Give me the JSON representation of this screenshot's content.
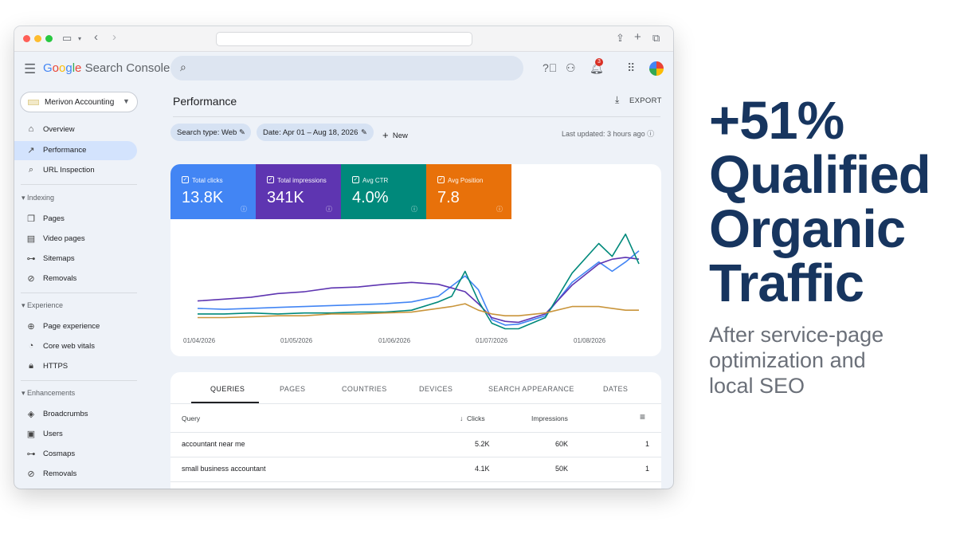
{
  "app": {
    "product_name": "Google Search Console",
    "property": "Merivon Accounting",
    "notification_count": "3"
  },
  "sidebar": {
    "top_items": [
      {
        "label": "Overview",
        "icon": "home-icon",
        "active": false
      },
      {
        "label": "Performance",
        "icon": "trending-up-icon",
        "active": true
      },
      {
        "label": "URL Inspection",
        "icon": "search-icon",
        "active": false
      }
    ],
    "sections": [
      {
        "title": "Indexing",
        "items": [
          {
            "label": "Pages",
            "icon": "pages-icon"
          },
          {
            "label": "Video pages",
            "icon": "video-pages-icon"
          },
          {
            "label": "Sitemaps",
            "icon": "sitemap-icon"
          },
          {
            "label": "Removals",
            "icon": "removals-icon"
          }
        ]
      },
      {
        "title": "Experience",
        "items": [
          {
            "label": "Page experience",
            "icon": "page-experience-icon"
          },
          {
            "label": "Core web vitals",
            "icon": "gauge-icon"
          },
          {
            "label": "HTTPS",
            "icon": "lock-icon"
          }
        ]
      },
      {
        "title": "Enhancements",
        "items": [
          {
            "label": "Broadcrumbs",
            "icon": "layers-icon"
          },
          {
            "label": "Users",
            "icon": "users-icon"
          },
          {
            "label": "Cosmaps",
            "icon": "sitemap-icon"
          },
          {
            "label": "Removals",
            "icon": "removals-icon"
          }
        ]
      }
    ]
  },
  "main": {
    "title": "Performance",
    "export_label": "EXPORT",
    "filters": {
      "search_type": "Search type: Web",
      "date": "Date: Apr 01 – Aug 18, 2026",
      "new_label": "New"
    },
    "last_updated": "Last updated: 3 hours ago"
  },
  "metrics": [
    {
      "label": "Total clicks",
      "value": "13.8K",
      "color": "#4285f4"
    },
    {
      "label": "Total impressions",
      "value": "341K",
      "color": "#5e35b1"
    },
    {
      "label": "Avg CTR",
      "value": "4.0%",
      "color": "#00897b"
    },
    {
      "label": "Avg Position",
      "value": "7.8",
      "color": "#e8710a"
    }
  ],
  "chart_data": {
    "type": "line",
    "x_tick_labels": [
      "01/04/2026",
      "01/05/2026",
      "01/06/2026",
      "01/07/2026",
      "01/08/2026"
    ],
    "x": [
      0,
      2,
      4,
      6,
      8,
      10,
      12,
      14,
      16,
      18,
      19,
      20,
      21,
      22,
      23,
      24,
      26,
      28,
      30,
      31,
      32,
      33
    ],
    "series": [
      {
        "name": "Total clicks",
        "color": "#4285f4",
        "values": [
          20,
          19,
          20,
          21,
          22,
          23,
          24,
          25,
          27,
          33,
          44,
          55,
          40,
          8,
          2,
          3,
          12,
          48,
          70,
          60,
          70,
          82
        ]
      },
      {
        "name": "Total impressions",
        "color": "#5e35b1",
        "values": [
          28,
          30,
          32,
          36,
          38,
          42,
          43,
          46,
          48,
          46,
          42,
          38,
          25,
          10,
          6,
          5,
          14,
          45,
          68,
          73,
          75,
          73
        ]
      },
      {
        "name": "Avg CTR",
        "color": "#00897b",
        "values": [
          14,
          14,
          15,
          14,
          15,
          15,
          16,
          16,
          18,
          27,
          33,
          60,
          28,
          4,
          -2,
          -2,
          10,
          58,
          90,
          76,
          100,
          68
        ]
      },
      {
        "name": "Avg Position",
        "color": "#c9953b",
        "values": [
          10,
          10,
          11,
          12,
          12,
          14,
          14,
          15,
          16,
          20,
          22,
          25,
          18,
          14,
          12,
          12,
          15,
          22,
          22,
          20,
          18,
          18
        ]
      }
    ]
  },
  "table": {
    "tabs": [
      "QUERIES",
      "PAGES",
      "COUNTRIES",
      "DEVICES",
      "SEARCH APPEARANCE",
      "DATES"
    ],
    "headers": {
      "query": "Query",
      "clicks": "Clicks",
      "impressions": "Impressions"
    },
    "rows": [
      {
        "query": "accountant near me",
        "clicks": "5.2K",
        "impressions": "60K",
        "position": "1"
      },
      {
        "query": "small business accountant",
        "clicks": "4.1K",
        "impressions": "50K",
        "position": "1"
      }
    ]
  },
  "marketing": {
    "headline": [
      "+51%",
      "Qualified",
      "Organic",
      "Traffic"
    ],
    "subline": [
      "After service-page",
      "optimization and",
      "local SEO"
    ]
  }
}
